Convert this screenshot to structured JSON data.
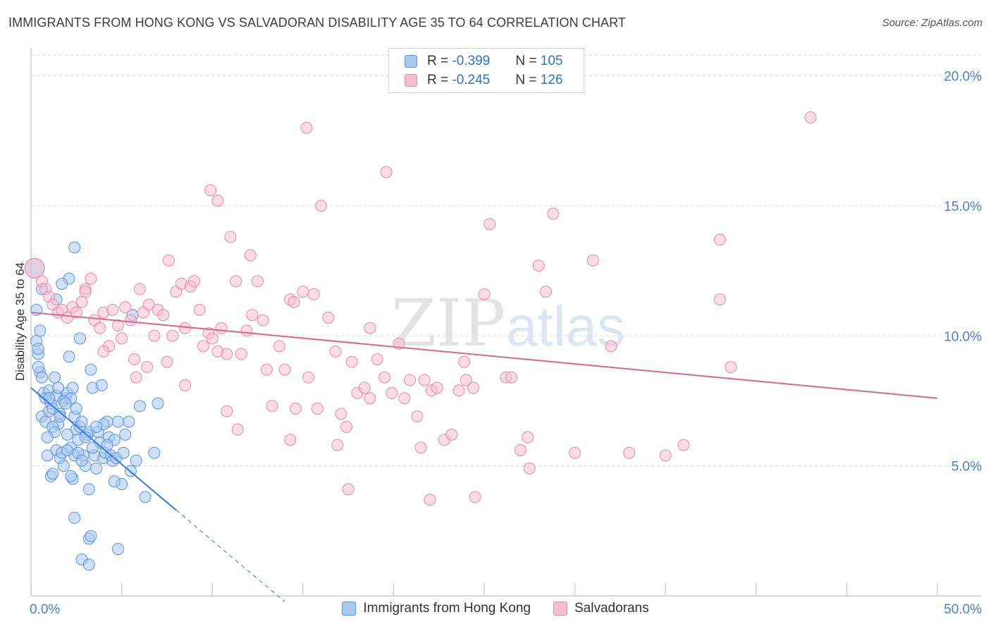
{
  "title": "IMMIGRANTS FROM HONG KONG VS SALVADORAN DISABILITY AGE 35 TO 64 CORRELATION CHART",
  "source": "Source: ZipAtlas.com",
  "watermark": {
    "zip": "ZIP",
    "atlas": "atlas"
  },
  "stats": [
    {
      "r_label": "R = ",
      "r_value": "-0.399",
      "n_label": "N = ",
      "n_value": "105"
    },
    {
      "r_label": "R = ",
      "r_value": "-0.245",
      "n_label": "N = ",
      "n_value": "126"
    }
  ],
  "colors": {
    "blue_fill": "#a9c8f0",
    "blue_stroke": "#5b93dc",
    "blue_line": "#3a7be0",
    "pink_fill": "#f6c0d1",
    "pink_stroke": "#e889a9",
    "pink_line": "#e0628f",
    "grid": "#d6d6d6",
    "axis_text": "#4a7fd4"
  },
  "chart_data": {
    "type": "scatter",
    "title": "IMMIGRANTS FROM HONG KONG VS SALVADORAN DISABILITY AGE 35 TO 64 CORRELATION CHART",
    "xlabel": "",
    "ylabel": "Disability Age 35 to 64",
    "xlim": [
      0,
      50
    ],
    "ylim": [
      0,
      20.8
    ],
    "x_tick_labels": [
      "0.0%",
      "50.0%"
    ],
    "y_ticks": [
      5,
      10,
      15,
      20
    ],
    "y_tick_labels": [
      "5.0%",
      "10.0%",
      "15.0%",
      "20.0%"
    ],
    "legend_position": "bottom",
    "series": [
      {
        "name": "Immigrants from Hong Kong",
        "color": "blue",
        "r": -0.399,
        "n": 105,
        "trend": {
          "x0": 0,
          "y0": 8.0,
          "x1": 8.0,
          "y1": 3.3,
          "dash_to_x": 14.0
        },
        "points": [
          [
            0.2,
            12.6
          ],
          [
            0.3,
            11.0
          ],
          [
            0.3,
            9.8
          ],
          [
            0.4,
            9.3
          ],
          [
            0.5,
            10.2
          ],
          [
            0.5,
            8.6
          ],
          [
            0.6,
            8.4
          ],
          [
            0.4,
            8.8
          ],
          [
            0.7,
            7.8
          ],
          [
            0.8,
            7.6
          ],
          [
            0.6,
            6.9
          ],
          [
            0.8,
            6.7
          ],
          [
            1.0,
            7.9
          ],
          [
            1.1,
            7.4
          ],
          [
            1.0,
            7.1
          ],
          [
            1.2,
            7.2
          ],
          [
            1.3,
            8.4
          ],
          [
            1.4,
            7.7
          ],
          [
            1.5,
            6.6
          ],
          [
            1.2,
            6.5
          ],
          [
            0.9,
            5.4
          ],
          [
            1.1,
            4.6
          ],
          [
            1.4,
            5.6
          ],
          [
            1.6,
            5.3
          ],
          [
            1.7,
            5.5
          ],
          [
            1.8,
            5.0
          ],
          [
            1.9,
            7.6
          ],
          [
            2.0,
            7.8
          ],
          [
            1.6,
            7.0
          ],
          [
            1.8,
            7.5
          ],
          [
            2.1,
            9.2
          ],
          [
            2.2,
            7.6
          ],
          [
            2.3,
            8.0
          ],
          [
            2.4,
            6.9
          ],
          [
            2.5,
            6.4
          ],
          [
            2.6,
            6.0
          ],
          [
            2.2,
            5.7
          ],
          [
            2.4,
            5.4
          ],
          [
            2.3,
            4.5
          ],
          [
            2.2,
            4.6
          ],
          [
            2.7,
            6.5
          ],
          [
            2.8,
            6.7
          ],
          [
            2.9,
            5.4
          ],
          [
            3.0,
            5.0
          ],
          [
            3.1,
            6.2
          ],
          [
            3.2,
            6.3
          ],
          [
            3.3,
            8.7
          ],
          [
            3.4,
            8.0
          ],
          [
            3.5,
            5.4
          ],
          [
            3.6,
            4.9
          ],
          [
            3.7,
            6.3
          ],
          [
            3.8,
            5.9
          ],
          [
            3.9,
            8.1
          ],
          [
            4.0,
            5.3
          ],
          [
            4.1,
            5.5
          ],
          [
            4.2,
            6.7
          ],
          [
            4.3,
            6.1
          ],
          [
            4.4,
            5.4
          ],
          [
            4.5,
            5.2
          ],
          [
            4.6,
            6.0
          ],
          [
            4.7,
            5.3
          ],
          [
            4.8,
            6.7
          ],
          [
            5.0,
            4.3
          ],
          [
            5.1,
            5.5
          ],
          [
            5.2,
            6.2
          ],
          [
            5.4,
            6.7
          ],
          [
            5.5,
            4.8
          ],
          [
            5.6,
            10.8
          ],
          [
            5.8,
            5.2
          ],
          [
            6.0,
            7.3
          ],
          [
            6.3,
            3.8
          ],
          [
            2.4,
            3.0
          ],
          [
            2.8,
            1.4
          ],
          [
            3.2,
            2.2
          ],
          [
            3.3,
            2.3
          ],
          [
            3.2,
            4.1
          ],
          [
            4.6,
            4.4
          ],
          [
            3.2,
            1.2
          ],
          [
            4.8,
            1.8
          ],
          [
            6.8,
            5.5
          ],
          [
            7.0,
            7.4
          ],
          [
            2.4,
            13.4
          ],
          [
            2.1,
            12.2
          ],
          [
            1.7,
            12.0
          ],
          [
            0.6,
            11.8
          ],
          [
            1.4,
            11.4
          ],
          [
            2.7,
            9.9
          ],
          [
            0.4,
            9.5
          ],
          [
            1.5,
            8.0
          ],
          [
            1.9,
            7.4
          ],
          [
            2.5,
            7.2
          ],
          [
            1.0,
            7.6
          ],
          [
            1.3,
            6.3
          ],
          [
            1.6,
            6.9
          ],
          [
            2.0,
            6.2
          ],
          [
            2.6,
            5.5
          ],
          [
            3.4,
            5.7
          ],
          [
            3.0,
            6.1
          ],
          [
            4.0,
            6.6
          ],
          [
            2.8,
            5.2
          ],
          [
            1.2,
            4.7
          ],
          [
            2.0,
            5.6
          ],
          [
            3.6,
            6.5
          ],
          [
            4.2,
            5.8
          ],
          [
            0.9,
            6.1
          ]
        ]
      },
      {
        "name": "Salvadorans",
        "color": "pink",
        "r": -0.245,
        "n": 126,
        "trend": {
          "x0": 0,
          "y0": 10.9,
          "x1": 50,
          "y1": 7.6
        },
        "points": [
          [
            0.2,
            12.6
          ],
          [
            0.6,
            12.1
          ],
          [
            0.8,
            11.8
          ],
          [
            1.0,
            11.5
          ],
          [
            1.2,
            11.2
          ],
          [
            1.5,
            10.9
          ],
          [
            1.7,
            11.0
          ],
          [
            2.0,
            10.7
          ],
          [
            2.3,
            11.1
          ],
          [
            2.5,
            10.9
          ],
          [
            2.8,
            11.3
          ],
          [
            3.0,
            11.8
          ],
          [
            3.3,
            12.2
          ],
          [
            3.5,
            10.6
          ],
          [
            3.8,
            10.3
          ],
          [
            4.0,
            10.9
          ],
          [
            4.3,
            9.6
          ],
          [
            4.5,
            11.0
          ],
          [
            4.8,
            10.4
          ],
          [
            5.0,
            9.9
          ],
          [
            5.2,
            11.1
          ],
          [
            5.5,
            10.6
          ],
          [
            5.7,
            9.1
          ],
          [
            6.0,
            11.8
          ],
          [
            6.2,
            10.9
          ],
          [
            6.5,
            11.2
          ],
          [
            6.8,
            10.0
          ],
          [
            7.0,
            11.0
          ],
          [
            7.3,
            10.8
          ],
          [
            7.5,
            9.0
          ],
          [
            7.8,
            10.0
          ],
          [
            8.0,
            11.7
          ],
          [
            8.3,
            12.0
          ],
          [
            8.5,
            10.3
          ],
          [
            8.8,
            11.9
          ],
          [
            9.0,
            12.1
          ],
          [
            9.3,
            11.0
          ],
          [
            9.5,
            9.6
          ],
          [
            9.8,
            10.1
          ],
          [
            10.0,
            9.9
          ],
          [
            10.3,
            9.4
          ],
          [
            10.5,
            10.3
          ],
          [
            10.8,
            9.3
          ],
          [
            11.0,
            13.8
          ],
          [
            11.3,
            12.1
          ],
          [
            11.6,
            9.3
          ],
          [
            11.9,
            10.2
          ],
          [
            12.2,
            10.8
          ],
          [
            12.5,
            12.1
          ],
          [
            12.8,
            10.6
          ],
          [
            13.0,
            8.7
          ],
          [
            13.3,
            7.3
          ],
          [
            13.7,
            9.6
          ],
          [
            14.0,
            8.7
          ],
          [
            14.3,
            11.4
          ],
          [
            14.6,
            7.2
          ],
          [
            15.0,
            11.7
          ],
          [
            15.3,
            8.4
          ],
          [
            15.6,
            11.6
          ],
          [
            16.0,
            15.0
          ],
          [
            16.4,
            10.7
          ],
          [
            16.8,
            9.4
          ],
          [
            17.1,
            7.0
          ],
          [
            17.4,
            6.5
          ],
          [
            17.7,
            9.0
          ],
          [
            18.0,
            7.8
          ],
          [
            18.4,
            8.0
          ],
          [
            18.7,
            10.3
          ],
          [
            19.1,
            9.1
          ],
          [
            19.5,
            8.4
          ],
          [
            19.9,
            7.8
          ],
          [
            20.3,
            9.7
          ],
          [
            20.6,
            7.6
          ],
          [
            20.9,
            8.3
          ],
          [
            21.3,
            6.9
          ],
          [
            21.7,
            8.3
          ],
          [
            22.1,
            7.9
          ],
          [
            22.4,
            8.0
          ],
          [
            22.8,
            6.0
          ],
          [
            23.2,
            6.2
          ],
          [
            23.6,
            7.9
          ],
          [
            24.0,
            8.3
          ],
          [
            24.4,
            8.0
          ],
          [
            25.0,
            11.6
          ],
          [
            25.3,
            14.3
          ],
          [
            26.2,
            8.4
          ],
          [
            26.5,
            8.4
          ],
          [
            27.0,
            5.6
          ],
          [
            27.4,
            6.1
          ],
          [
            28.0,
            12.7
          ],
          [
            28.4,
            11.7
          ],
          [
            28.8,
            14.7
          ],
          [
            30.0,
            5.5
          ],
          [
            31.0,
            12.9
          ],
          [
            32.0,
            9.6
          ],
          [
            33.0,
            5.5
          ],
          [
            35.0,
            5.4
          ],
          [
            36.0,
            5.8
          ],
          [
            38.0,
            11.4
          ],
          [
            38.6,
            8.8
          ],
          [
            38.0,
            13.7
          ],
          [
            43.0,
            18.4
          ],
          [
            16.9,
            5.8
          ],
          [
            17.5,
            4.1
          ],
          [
            21.5,
            5.7
          ],
          [
            22.0,
            3.7
          ],
          [
            23.9,
            9.0
          ],
          [
            24.5,
            3.8
          ],
          [
            27.5,
            4.9
          ],
          [
            14.3,
            6.0
          ],
          [
            9.9,
            15.6
          ],
          [
            10.3,
            15.2
          ],
          [
            15.2,
            18.0
          ],
          [
            19.6,
            16.3
          ],
          [
            14.5,
            11.3
          ],
          [
            15.8,
            7.2
          ],
          [
            18.7,
            7.6
          ],
          [
            8.5,
            8.1
          ],
          [
            6.4,
            8.8
          ],
          [
            10.8,
            7.1
          ],
          [
            12.1,
            13.1
          ],
          [
            4.0,
            9.4
          ],
          [
            5.8,
            8.4
          ],
          [
            11.4,
            6.4
          ],
          [
            3.0,
            11.7
          ],
          [
            7.6,
            12.9
          ]
        ]
      }
    ]
  },
  "legend": [
    "Immigrants from Hong Kong",
    "Salvadorans"
  ]
}
